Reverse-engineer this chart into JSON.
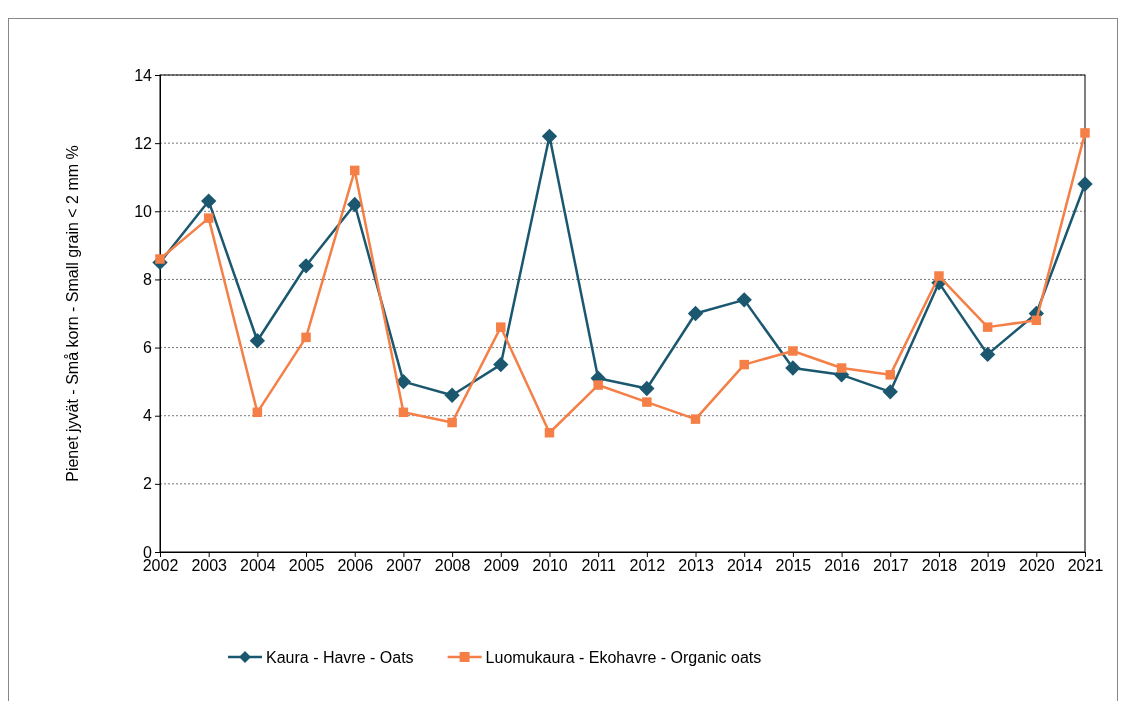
{
  "chart_data": {
    "type": "line",
    "ylabel": "Pienet jyvät - Små korn - Small grain < 2 mm %",
    "categories": [
      "2002",
      "2003",
      "2004",
      "2005",
      "2006",
      "2007",
      "2008",
      "2009",
      "2010",
      "2011",
      "2012",
      "2013",
      "2014",
      "2015",
      "2016",
      "2017",
      "2018",
      "2019",
      "2020",
      "2021"
    ],
    "series": [
      {
        "name": "Kaura - Havre - Oats",
        "color": "#1b5870",
        "marker": "diamond",
        "values": [
          8.5,
          10.3,
          6.2,
          8.4,
          10.2,
          5.0,
          4.6,
          5.5,
          12.2,
          5.1,
          4.8,
          7.0,
          7.4,
          5.4,
          5.2,
          4.7,
          7.9,
          5.8,
          7.0,
          10.8
        ]
      },
      {
        "name": "Luomukaura - Ekohavre - Organic oats",
        "color": "#f47f47",
        "marker": "square",
        "values": [
          8.6,
          9.8,
          4.1,
          6.3,
          11.2,
          4.1,
          3.8,
          6.6,
          3.5,
          4.9,
          4.4,
          3.9,
          5.5,
          5.9,
          5.4,
          5.2,
          8.1,
          6.6,
          6.8,
          12.3
        ]
      }
    ],
    "ylim": [
      0,
      14
    ],
    "yticks": [
      0,
      2,
      4,
      6,
      8,
      10,
      12,
      14
    ],
    "grid": "y",
    "legend": "bottom",
    "line_style": "solid"
  }
}
